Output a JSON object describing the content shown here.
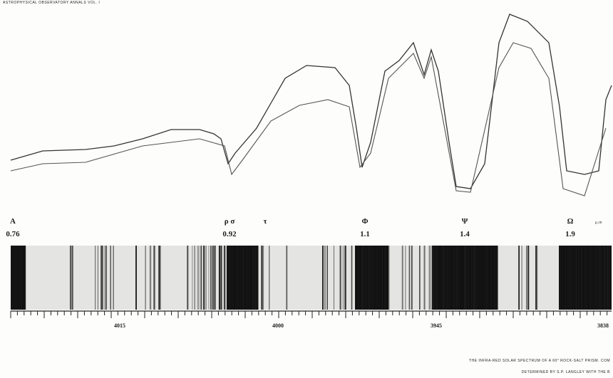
{
  "header": "ASTROPHYSICAL OBSERVATORY ANNALS VOL. I",
  "markers": [
    {
      "symbol": "A",
      "value": "0.76"
    },
    {
      "symbol": "ρ σ",
      "value": "0.92"
    },
    {
      "symbol": "τ"
    },
    {
      "symbol": "Φ",
      "value": "1.1"
    },
    {
      "symbol": "Ψ",
      "value": "1.4"
    },
    {
      "symbol": "Ω",
      "value": "1.9"
    }
  ],
  "unit": "μ,m",
  "scale_labels": [
    "4015",
    "4000",
    "3945",
    "3838"
  ],
  "caption": [
    "THE INFRA-RED SOLAR SPECTRUM OF A 60° ROCK-SALT PRISM. COM",
    "DETERMINED BY S.P. LANGLEY WITH THE B"
  ]
}
